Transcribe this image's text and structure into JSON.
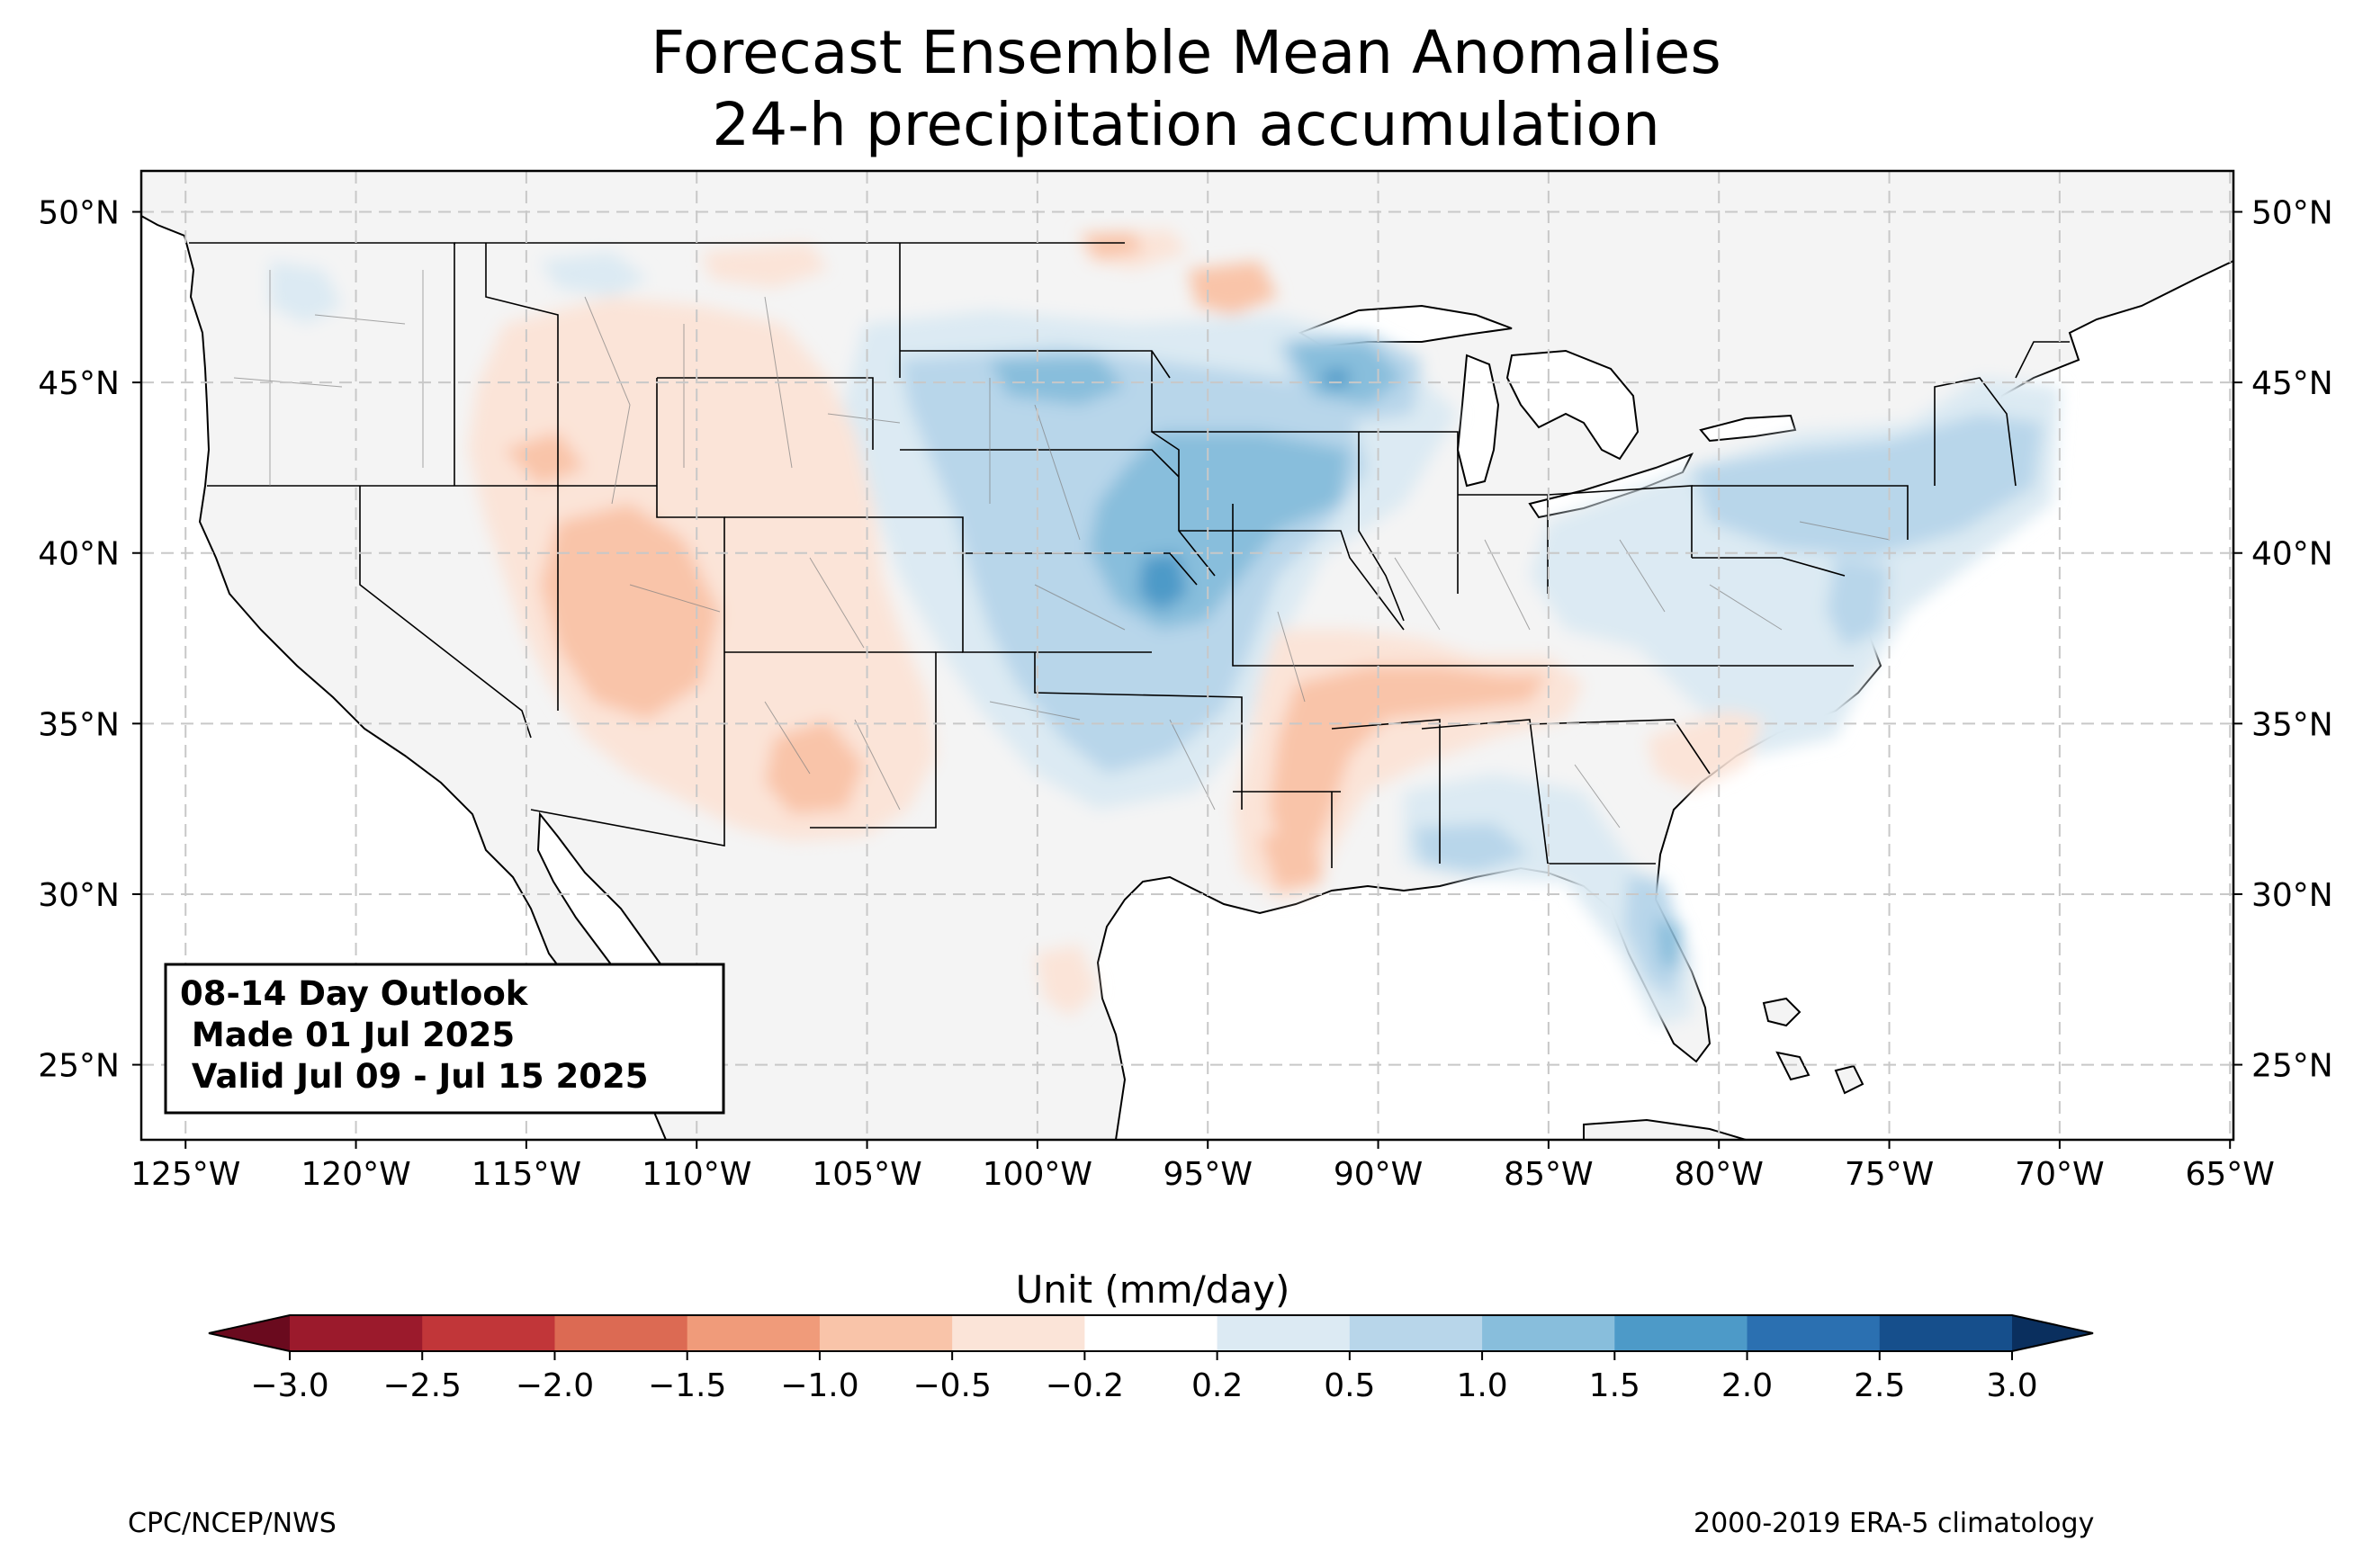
{
  "title": {
    "line1": "Forecast Ensemble Mean Anomalies",
    "line2": "24-h precipitation accumulation"
  },
  "map": {
    "lat_ticks": [
      "50°N",
      "45°N",
      "40°N",
      "35°N",
      "30°N",
      "25°N"
    ],
    "lat_values": [
      50,
      45,
      40,
      35,
      30,
      25
    ],
    "lon_ticks": [
      "125°W",
      "120°W",
      "115°W",
      "110°W",
      "105°W",
      "100°W",
      "95°W",
      "90°W",
      "85°W",
      "80°W",
      "75°W",
      "70°W",
      "65°W"
    ],
    "lon_values": [
      -125,
      -120,
      -115,
      -110,
      -105,
      -100,
      -95,
      -90,
      -85,
      -80,
      -75,
      -70,
      -65
    ],
    "lon_range": [
      -126.3,
      -64.9
    ],
    "lat_range": [
      22.8,
      51.2
    ],
    "land_color": "#f4f4f4",
    "grid": true
  },
  "outlook_box": {
    "line1": "08-14 Day Outlook",
    "line2": " Made 01 Jul 2025",
    "line3": " Valid Jul 09 - Jul 15 2025"
  },
  "colorbar": {
    "label": "Unit (mm/day)",
    "tick_labels": [
      "−3.0",
      "−2.5",
      "−2.0",
      "−1.5",
      "−1.0",
      "−0.5",
      "−0.2",
      "0.2",
      "0.5",
      "1.0",
      "1.5",
      "2.0",
      "2.5",
      "3.0"
    ],
    "colors": [
      "#9b1a2c",
      "#c13639",
      "#dc6a53",
      "#f09b7a",
      "#f9c4a9",
      "#fbe4d8",
      "#ffffff",
      "#dceaf3",
      "#b8d6ea",
      "#88bedc",
      "#4d9ac8",
      "#2b70b1",
      "#164f8c"
    ],
    "under_color": "#6a0a1e",
    "over_color": "#0a2f5e"
  },
  "footer": {
    "left": "CPC/NCEP/NWS",
    "right": "2000-2019 ERA-5 climatology"
  }
}
